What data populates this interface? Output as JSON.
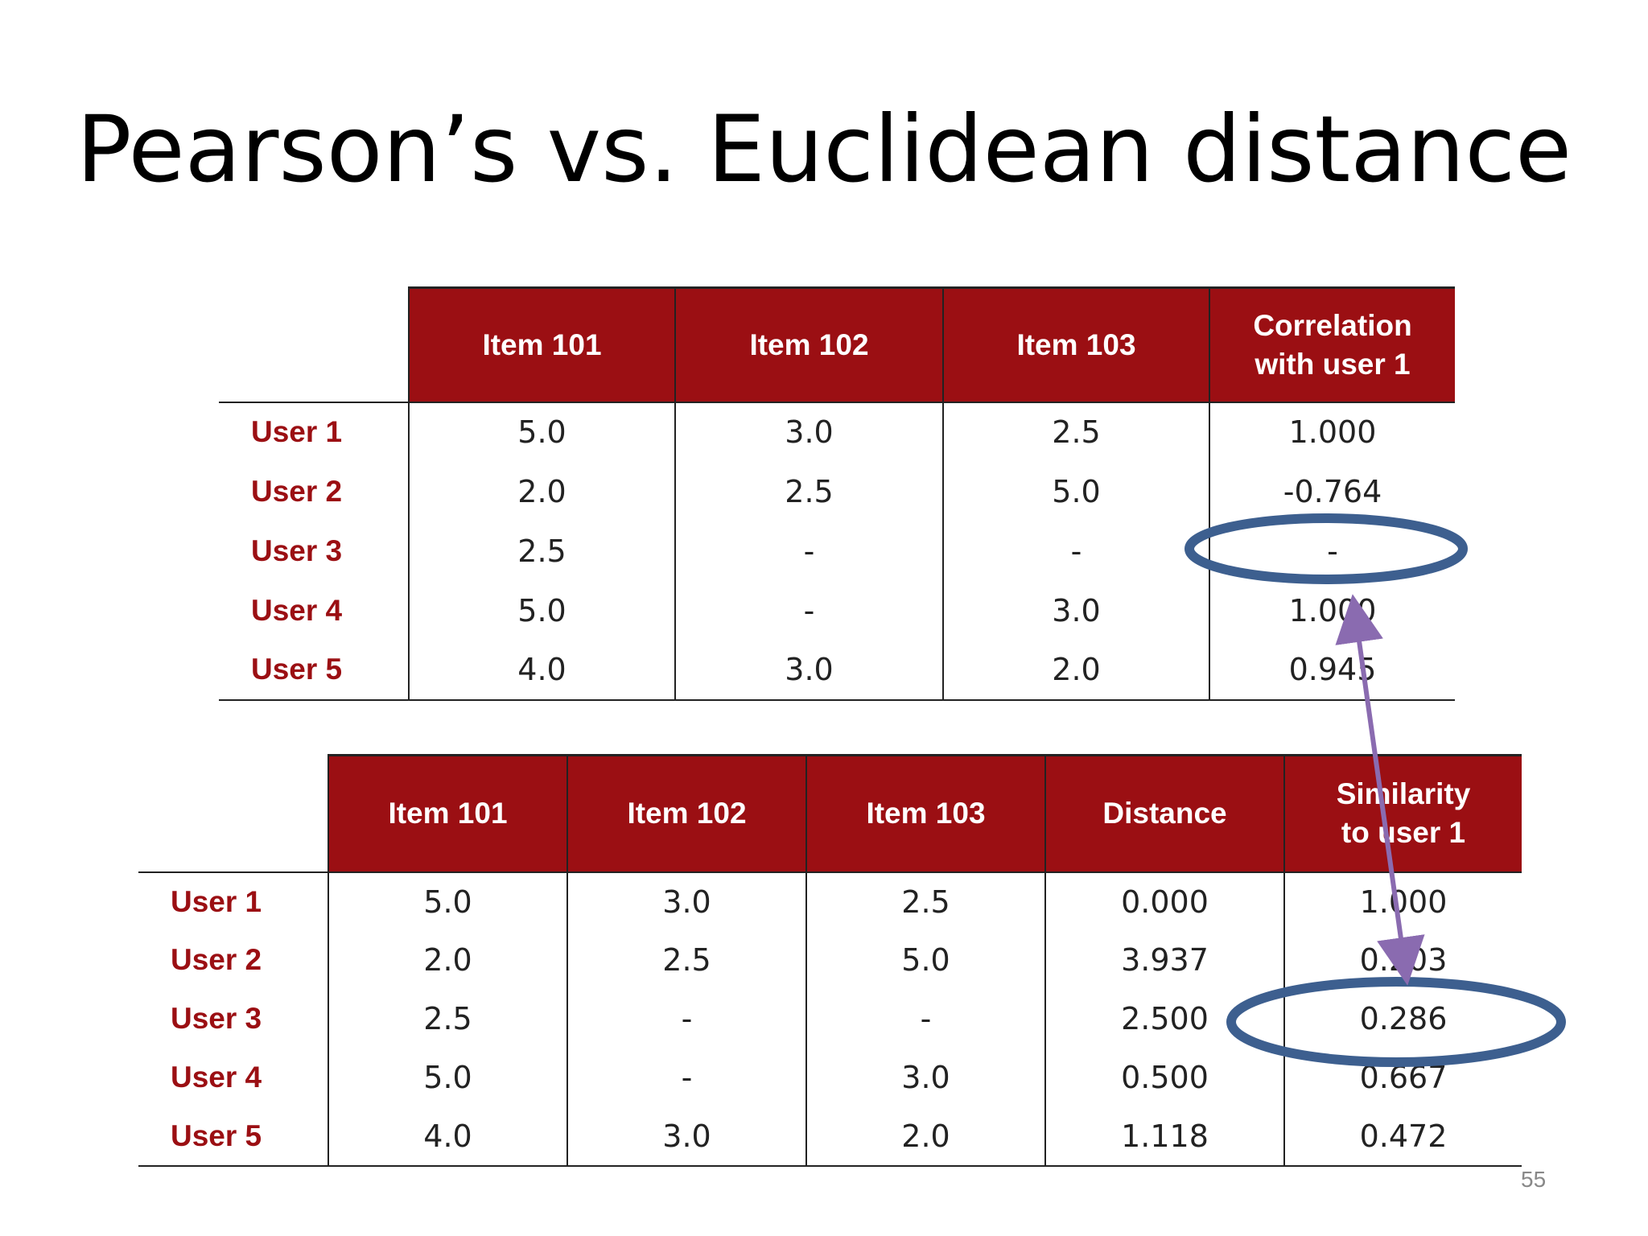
{
  "slide": {
    "title": "Pearson’s vs. Euclidean distance",
    "page_number": "55"
  },
  "table_pearson": {
    "headers": [
      "Item 101",
      "Item 102",
      "Item 103",
      "Correlation with user 1"
    ],
    "rows": [
      {
        "label": "User 1",
        "values": [
          "5.0",
          "3.0",
          "2.5",
          "1.000"
        ]
      },
      {
        "label": "User 2",
        "values": [
          "2.0",
          "2.5",
          "5.0",
          "-0.764"
        ]
      },
      {
        "label": "User 3",
        "values": [
          "2.5",
          "-",
          "-",
          "-"
        ]
      },
      {
        "label": "User 4",
        "values": [
          "5.0",
          "-",
          "3.0",
          "1.000"
        ]
      },
      {
        "label": "User 5",
        "values": [
          "4.0",
          "3.0",
          "2.0",
          "0.945"
        ]
      }
    ]
  },
  "table_euclidean": {
    "headers": [
      "Item 101",
      "Item 102",
      "Item 103",
      "Distance",
      "Similarity to user 1"
    ],
    "rows": [
      {
        "label": "User 1",
        "values": [
          "5.0",
          "3.0",
          "2.5",
          "0.000",
          "1.000"
        ]
      },
      {
        "label": "User 2",
        "values": [
          "2.0",
          "2.5",
          "5.0",
          "3.937",
          "0.203"
        ]
      },
      {
        "label": "User 3",
        "values": [
          "2.5",
          "-",
          "-",
          "2.500",
          "0.286"
        ]
      },
      {
        "label": "User 4",
        "values": [
          "5.0",
          "-",
          "3.0",
          "0.500",
          "0.667"
        ]
      },
      {
        "label": "User 5",
        "values": [
          "4.0",
          "3.0",
          "2.0",
          "1.118",
          "0.472"
        ]
      }
    ]
  },
  "annotations": {
    "circle_color": "#3d5f8f",
    "arrow_color": "#8a6bb0",
    "header_color": "#9b0f13"
  }
}
